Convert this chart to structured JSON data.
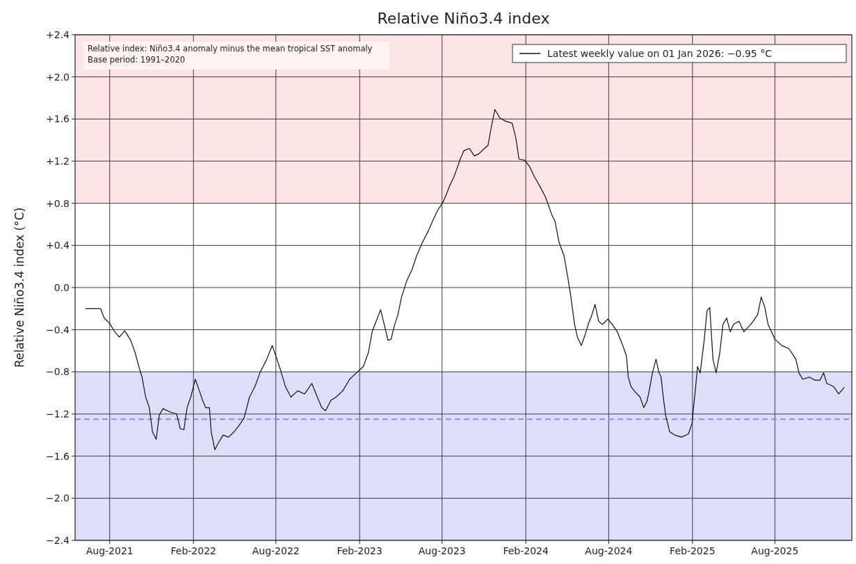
{
  "chart_data": {
    "type": "line",
    "title": "Relative Niño3.4 index",
    "ylabel": "Relative Niño3.4 index (°C)",
    "annotations": [
      "Relative index: Niño3.4 anomaly minus the mean tropical SST anomaly",
      "Base period: 1991–2020"
    ],
    "xlim": [
      "2021-05-17",
      "2026-01-17"
    ],
    "xticks": [
      {
        "value": "2021-08-01",
        "label": "Aug-2021"
      },
      {
        "value": "2022-02-01",
        "label": "Feb-2022"
      },
      {
        "value": "2022-08-01",
        "label": "Aug-2022"
      },
      {
        "value": "2023-02-01",
        "label": "Feb-2023"
      },
      {
        "value": "2023-08-01",
        "label": "Aug-2023"
      },
      {
        "value": "2024-02-01",
        "label": "Feb-2024"
      },
      {
        "value": "2024-08-01",
        "label": "Aug-2024"
      },
      {
        "value": "2025-02-01",
        "label": "Feb-2025"
      },
      {
        "value": "2025-08-01",
        "label": "Aug-2025"
      }
    ],
    "ylim": [
      -2.4,
      2.4
    ],
    "yticks": [
      {
        "value": 2.4,
        "label": "+2.4"
      },
      {
        "value": 2.0,
        "label": "+2.0"
      },
      {
        "value": 1.6,
        "label": "+1.6"
      },
      {
        "value": 1.2,
        "label": "+1.2"
      },
      {
        "value": 0.8,
        "label": "+0.8"
      },
      {
        "value": 0.4,
        "label": "+0.4"
      },
      {
        "value": 0,
        "label": "0.0"
      },
      {
        "value": -0.4,
        "label": "−0.4"
      },
      {
        "value": -0.8,
        "label": "−0.8"
      },
      {
        "value": -1.2,
        "label": "−1.2"
      },
      {
        "value": -1.6,
        "label": "−1.6"
      },
      {
        "value": -2.0,
        "label": "−2.0"
      },
      {
        "value": -2.4,
        "label": "−2.4"
      }
    ],
    "grid": true,
    "legend": "top right",
    "line_style": "solid",
    "marker": "none",
    "bands": [
      {
        "axis": "y",
        "from": 0.8,
        "to": 2.4,
        "color": "#fde5e5"
      },
      {
        "axis": "y",
        "from": -2.4,
        "to": -0.8,
        "color": "#dedefa"
      }
    ],
    "ref_lines": [
      {
        "axis": "y",
        "value": -1.25,
        "color": "#8c8cd2",
        "line_style": "dashed"
      }
    ],
    "series": [
      {
        "name": "Latest weekly value on 01 Jan 2026: −0.95 °C",
        "color": "#111111",
        "x": [
          "2021-06-09",
          "2021-06-27",
          "2021-07-12",
          "2021-07-20",
          "2021-08-01",
          "2021-08-12",
          "2021-08-22",
          "2021-09-03",
          "2021-09-16",
          "2021-09-26",
          "2021-10-04",
          "2021-10-11",
          "2021-10-19",
          "2021-10-27",
          "2021-11-03",
          "2021-11-11",
          "2021-11-18",
          "2021-11-26",
          "2021-12-11",
          "2021-12-26",
          "2022-01-03",
          "2022-01-11",
          "2022-01-18",
          "2022-01-26",
          "2022-02-05",
          "2022-02-14",
          "2022-02-21",
          "2022-02-28",
          "2022-03-08",
          "2022-03-12",
          "2022-03-20",
          "2022-03-27",
          "2022-04-07",
          "2022-04-19",
          "2022-05-01",
          "2022-05-12",
          "2022-05-23",
          "2022-06-04",
          "2022-06-16",
          "2022-06-27",
          "2022-07-12",
          "2022-07-24",
          "2022-08-01",
          "2022-08-11",
          "2022-08-22",
          "2022-09-03",
          "2022-09-18",
          "2022-10-03",
          "2022-10-19",
          "2022-10-31",
          "2022-11-10",
          "2022-11-18",
          "2022-11-30",
          "2022-12-11",
          "2022-12-26",
          "2023-01-10",
          "2023-01-25",
          "2023-02-09",
          "2023-02-20",
          "2023-03-01",
          "2023-03-12",
          "2023-03-19",
          "2023-03-27",
          "2023-04-04",
          "2023-04-11",
          "2023-04-19",
          "2023-04-26",
          "2023-05-04",
          "2023-05-16",
          "2023-05-27",
          "2023-06-06",
          "2023-06-19",
          "2023-07-01",
          "2023-07-11",
          "2023-07-22",
          "2023-08-03",
          "2023-08-11",
          "2023-08-18",
          "2023-08-26",
          "2023-09-02",
          "2023-09-10",
          "2023-09-18",
          "2023-09-30",
          "2023-10-11",
          "2023-10-21",
          "2023-11-02",
          "2023-11-10",
          "2023-11-17",
          "2023-11-25",
          "2023-12-06",
          "2023-12-18",
          "2024-01-02",
          "2024-01-10",
          "2024-01-17",
          "2024-01-29",
          "2024-02-09",
          "2024-02-20",
          "2024-03-03",
          "2024-03-15",
          "2024-03-21",
          "2024-03-29",
          "2024-04-05",
          "2024-04-14",
          "2024-04-25",
          "2024-05-03",
          "2024-05-10",
          "2024-05-18",
          "2024-05-25",
          "2024-06-02",
          "2024-06-10",
          "2024-06-17",
          "2024-06-25",
          "2024-07-02",
          "2024-07-10",
          "2024-07-18",
          "2024-07-30",
          "2024-08-09",
          "2024-08-20",
          "2024-09-01",
          "2024-09-09",
          "2024-09-13",
          "2024-09-19",
          "2024-09-28",
          "2024-10-09",
          "2024-10-17",
          "2024-10-24",
          "2024-10-29",
          "2024-11-05",
          "2024-11-13",
          "2024-11-19",
          "2024-11-24",
          "2024-11-28",
          "2024-12-04",
          "2024-12-13",
          "2024-12-24",
          "2025-01-08",
          "2025-01-23",
          "2025-01-31",
          "2025-02-08",
          "2025-02-12",
          "2025-02-18",
          "2025-02-27",
          "2025-03-05",
          "2025-03-11",
          "2025-03-18",
          "2025-03-25",
          "2025-04-02",
          "2025-04-09",
          "2025-04-17",
          "2025-04-25",
          "2025-05-02",
          "2025-05-14",
          "2025-05-25",
          "2025-06-09",
          "2025-06-24",
          "2025-07-02",
          "2025-07-10",
          "2025-07-17",
          "2025-08-01",
          "2025-08-16",
          "2025-09-01",
          "2025-09-16",
          "2025-09-23",
          "2025-10-01",
          "2025-10-16",
          "2025-10-28",
          "2025-11-08",
          "2025-11-16",
          "2025-11-23",
          "2025-12-08",
          "2025-12-19",
          "2025-12-31"
        ],
        "values": [
          -0.2,
          -0.2,
          -0.2,
          -0.29,
          -0.34,
          -0.42,
          -0.47,
          -0.41,
          -0.5,
          -0.62,
          -0.75,
          -0.85,
          -1.04,
          -1.14,
          -1.37,
          -1.44,
          -1.21,
          -1.15,
          -1.18,
          -1.2,
          -1.34,
          -1.35,
          -1.14,
          -1.04,
          -0.87,
          -0.98,
          -1.07,
          -1.14,
          -1.14,
          -1.37,
          -1.54,
          -1.48,
          -1.4,
          -1.42,
          -1.37,
          -1.31,
          -1.24,
          -1.04,
          -0.94,
          -0.81,
          -0.68,
          -0.55,
          -0.65,
          -0.78,
          -0.94,
          -1.04,
          -0.98,
          -1.01,
          -0.91,
          -1.04,
          -1.14,
          -1.17,
          -1.07,
          -1.04,
          -0.98,
          -0.87,
          -0.81,
          -0.75,
          -0.62,
          -0.41,
          -0.29,
          -0.21,
          -0.35,
          -0.5,
          -0.49,
          -0.35,
          -0.26,
          -0.09,
          0.07,
          0.17,
          0.3,
          0.43,
          0.53,
          0.63,
          0.73,
          0.81,
          0.89,
          0.97,
          1.04,
          1.12,
          1.22,
          1.3,
          1.32,
          1.25,
          1.27,
          1.32,
          1.35,
          1.52,
          1.69,
          1.61,
          1.58,
          1.56,
          1.42,
          1.22,
          1.21,
          1.15,
          1.05,
          0.96,
          0.86,
          0.79,
          0.69,
          0.63,
          0.43,
          0.3,
          0.1,
          -0.09,
          -0.35,
          -0.48,
          -0.55,
          -0.45,
          -0.35,
          -0.26,
          -0.16,
          -0.32,
          -0.35,
          -0.3,
          -0.35,
          -0.42,
          -0.55,
          -0.65,
          -0.85,
          -0.94,
          -0.99,
          -1.04,
          -1.14,
          -1.08,
          -0.98,
          -0.81,
          -0.68,
          -0.8,
          -0.85,
          -1.01,
          -1.21,
          -1.37,
          -1.4,
          -1.42,
          -1.39,
          -1.29,
          -0.94,
          -0.75,
          -0.81,
          -0.49,
          -0.22,
          -0.19,
          -0.68,
          -0.81,
          -0.62,
          -0.35,
          -0.29,
          -0.42,
          -0.35,
          -0.32,
          -0.42,
          -0.35,
          -0.26,
          -0.09,
          -0.19,
          -0.35,
          -0.49,
          -0.55,
          -0.58,
          -0.68,
          -0.81,
          -0.87,
          -0.85,
          -0.88,
          -0.88,
          -0.81,
          -0.91,
          -0.94,
          -1.01,
          -0.95
        ]
      }
    ]
  }
}
